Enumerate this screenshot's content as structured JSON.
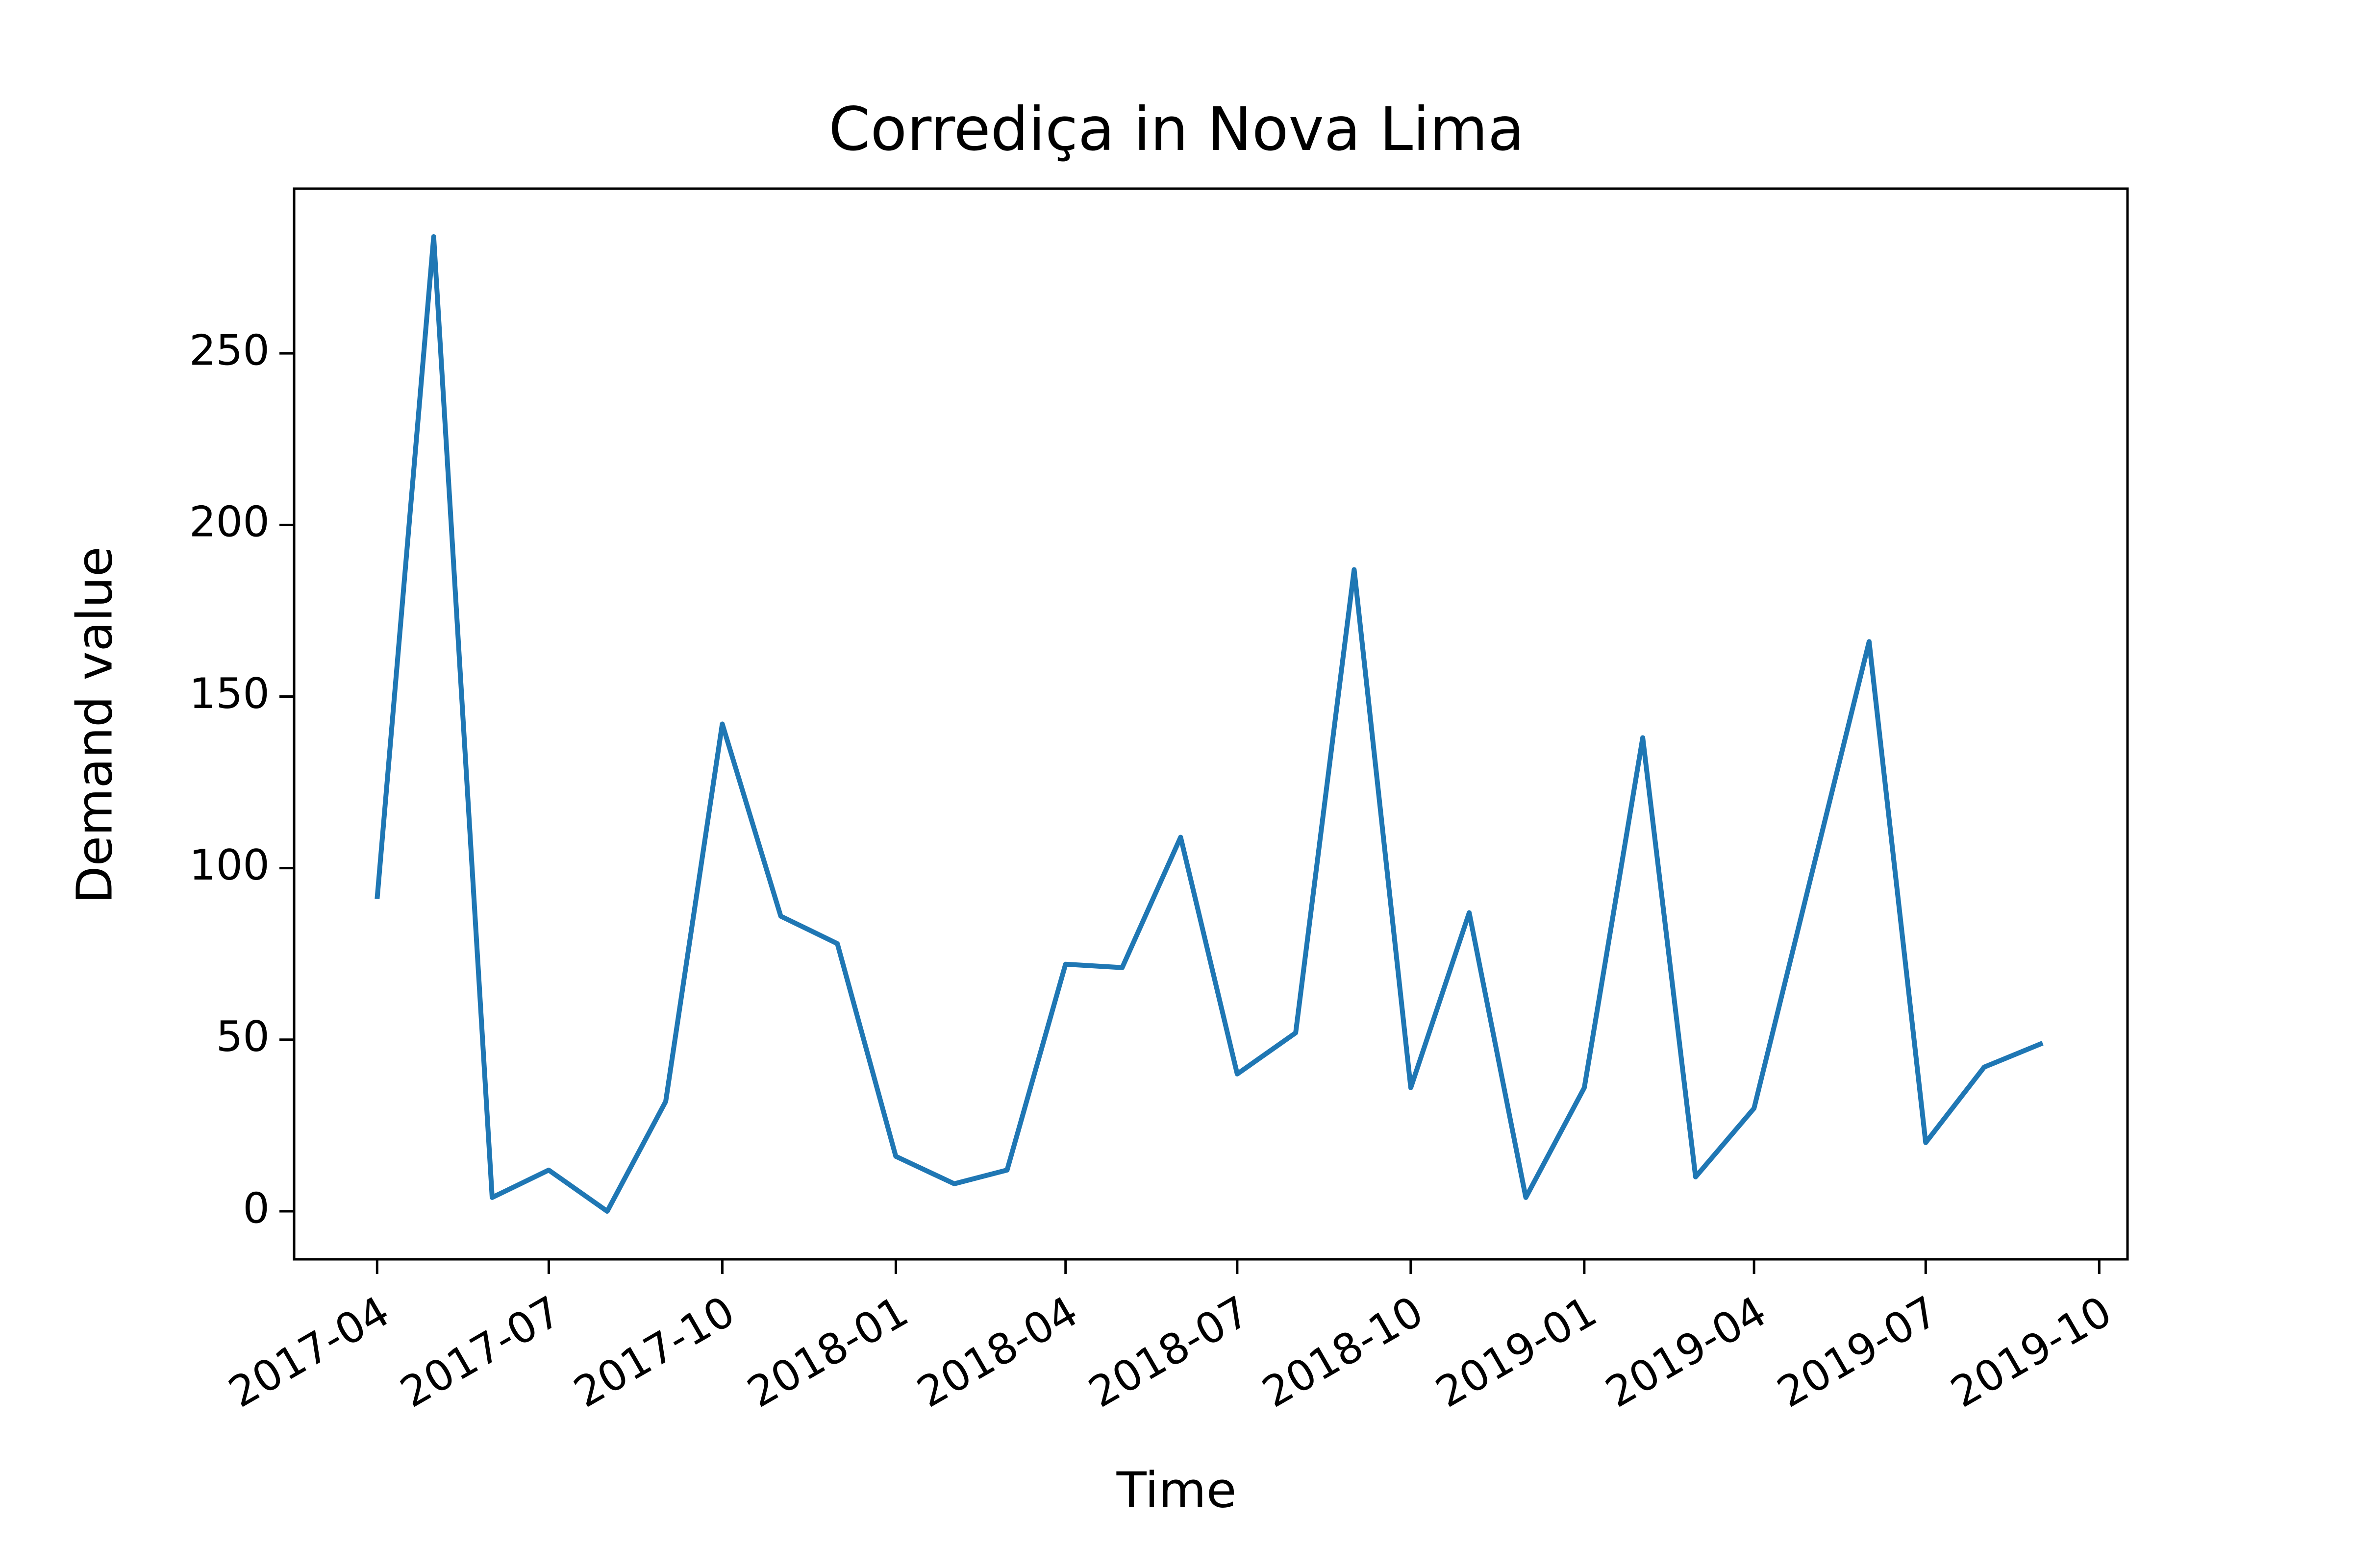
{
  "chart_data": {
    "type": "line",
    "title": "Corrediça in Nova Lima",
    "xlabel": "Time",
    "ylabel": "Demand value",
    "x_ticks": [
      "2017-04",
      "2017-07",
      "2017-10",
      "2018-01",
      "2018-04",
      "2018-07",
      "2018-10",
      "2019-01",
      "2019-04",
      "2019-07",
      "2019-10"
    ],
    "y_ticks": [
      0,
      50,
      100,
      150,
      200,
      250
    ],
    "ylim": [
      -14,
      298
    ],
    "x_range": [
      "2017-02-16",
      "2019-10-16"
    ],
    "grid": false,
    "legend": "none",
    "colors": {
      "line": "#1f77b4"
    },
    "x": [
      "2017-04-01",
      "2017-05-01",
      "2017-06-01",
      "2017-07-01",
      "2017-08-01",
      "2017-09-01",
      "2017-10-01",
      "2017-11-01",
      "2017-12-01",
      "2018-01-01",
      "2018-02-01",
      "2018-03-01",
      "2018-04-01",
      "2018-05-01",
      "2018-06-01",
      "2018-07-01",
      "2018-08-01",
      "2018-09-01",
      "2018-10-01",
      "2018-11-01",
      "2018-12-01",
      "2019-01-01",
      "2019-02-01",
      "2019-03-01",
      "2019-04-01",
      "2019-05-01",
      "2019-06-01",
      "2019-07-01",
      "2019-08-01",
      "2019-09-01"
    ],
    "series": [
      {
        "values": [
          91,
          284,
          4,
          12,
          0,
          32,
          142,
          86,
          78,
          16,
          8,
          12,
          72,
          71,
          109,
          40,
          52,
          187,
          36,
          87,
          4,
          36,
          138,
          10,
          30,
          97,
          166,
          20,
          42,
          49
        ]
      }
    ]
  }
}
